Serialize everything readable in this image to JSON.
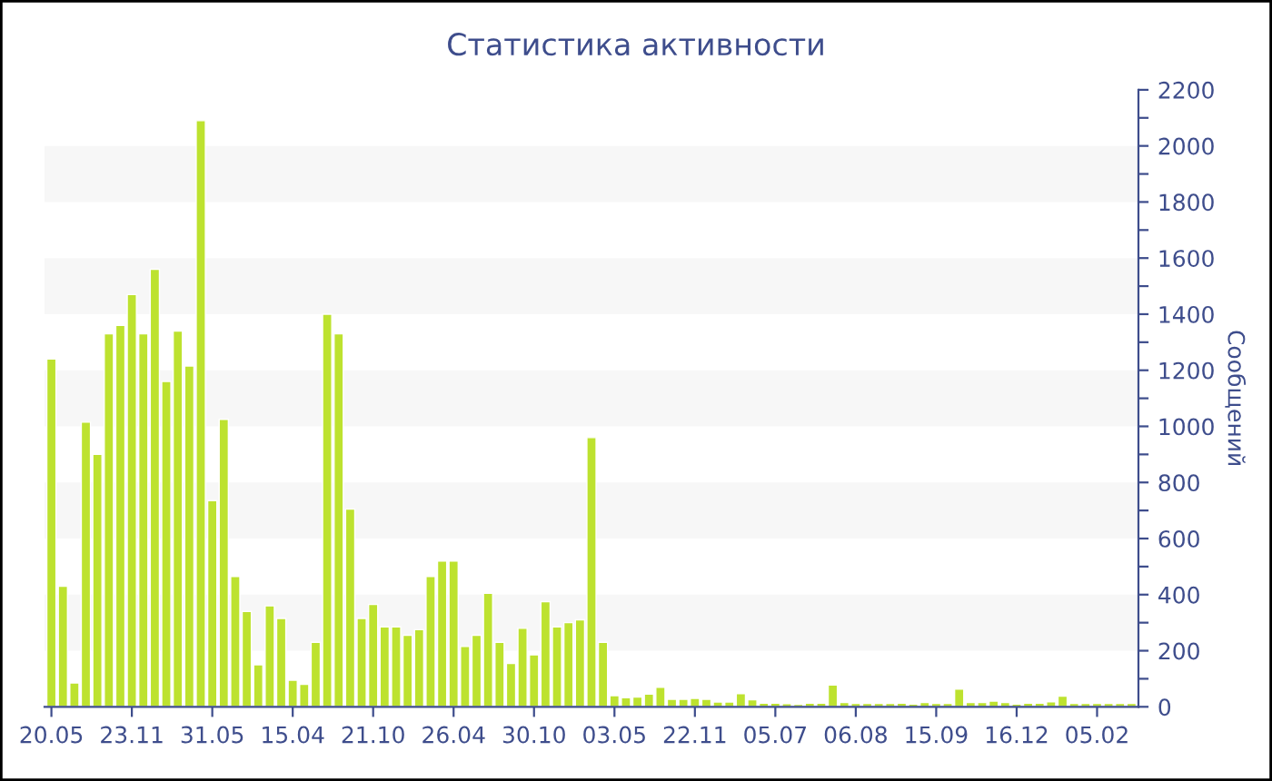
{
  "chart_data": {
    "type": "bar",
    "title": "Статистика активности",
    "ylabel": "Сообщений",
    "categories": [
      "20.05",
      null,
      null,
      null,
      null,
      null,
      null,
      "23.11",
      null,
      null,
      null,
      null,
      null,
      null,
      "31.05",
      null,
      null,
      null,
      null,
      null,
      null,
      "15.04",
      null,
      null,
      null,
      null,
      null,
      null,
      "21.10",
      null,
      null,
      null,
      null,
      null,
      null,
      "26.04",
      null,
      null,
      null,
      null,
      null,
      null,
      "30.10",
      null,
      null,
      null,
      null,
      null,
      null,
      "03.05",
      null,
      null,
      null,
      null,
      null,
      null,
      "22.11",
      null,
      null,
      null,
      null,
      null,
      null,
      "05.07",
      null,
      null,
      null,
      null,
      null,
      null,
      "06.08",
      null,
      null,
      null,
      null,
      null,
      null,
      "15.09",
      null,
      null,
      null,
      null,
      null,
      null,
      "16.12",
      null,
      null,
      null,
      null,
      null,
      null,
      "05.02",
      null,
      null,
      null
    ],
    "values": [
      1240,
      430,
      85,
      1015,
      900,
      1330,
      1360,
      1470,
      1330,
      1560,
      1160,
      1340,
      1215,
      2090,
      735,
      1025,
      465,
      340,
      150,
      360,
      315,
      95,
      80,
      230,
      1400,
      1330,
      705,
      315,
      365,
      285,
      285,
      255,
      275,
      465,
      520,
      520,
      215,
      255,
      405,
      230,
      155,
      280,
      185,
      375,
      285,
      300,
      310,
      960,
      230,
      40,
      32,
      35,
      45,
      70,
      27,
      27,
      30,
      27,
      17,
      17,
      47,
      25,
      13,
      13,
      11,
      9,
      13,
      13,
      78,
      15,
      12,
      12,
      12,
      12,
      13,
      10,
      15,
      12,
      12,
      63,
      15,
      15,
      20,
      15,
      10,
      13,
      13,
      18,
      38,
      12,
      12,
      12,
      12,
      12,
      12
    ],
    "color": "#bde22f",
    "ylim": [
      0,
      2200
    ],
    "yticks": [
      0,
      {
        "value": 100,
        "label": null
      },
      200,
      {
        "value": 300,
        "label": null
      },
      400,
      {
        "value": 500,
        "label": null
      },
      600,
      {
        "value": 700,
        "label": null
      },
      800,
      {
        "value": 900,
        "label": null
      },
      1000,
      {
        "value": 1100,
        "label": null
      },
      1200,
      {
        "value": 1300,
        "label": null
      },
      1400,
      {
        "value": 1500,
        "label": null
      },
      1600,
      {
        "value": 1700,
        "label": null
      },
      1800,
      {
        "value": 1900,
        "label": null
      },
      2000,
      {
        "value": 2100,
        "label": null
      },
      2200
    ],
    "bands": [
      {
        "axis": "y",
        "from": 200,
        "to": 400,
        "color": "#f7f7f7"
      },
      {
        "axis": "y",
        "from": 600,
        "to": 800,
        "color": "#f7f7f7"
      },
      {
        "axis": "y",
        "from": 1000,
        "to": 1200,
        "color": "#f7f7f7"
      },
      {
        "axis": "y",
        "from": 1400,
        "to": 1600,
        "color": "#f7f7f7"
      },
      {
        "axis": "y",
        "from": 1800,
        "to": 2000,
        "color": "#f7f7f7"
      }
    ],
    "grid": false,
    "legend": false
  }
}
